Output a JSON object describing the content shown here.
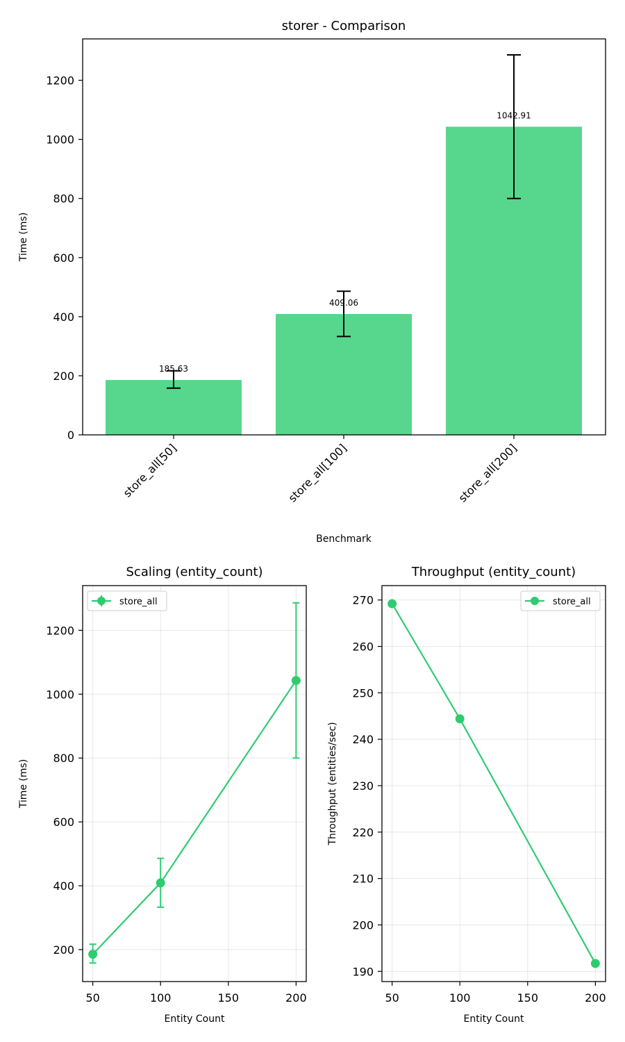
{
  "colors": {
    "bar": "#57d68d",
    "series": "#2ecc71",
    "axis": "#000000",
    "error": "#000000"
  },
  "chart_data": [
    {
      "type": "bar",
      "title": "storer - Comparison",
      "xlabel": "Benchmark",
      "ylabel": "Time (ms)",
      "categories": [
        "store_all[50]",
        "store_all[100]",
        "store_all[200]"
      ],
      "values": [
        185.63,
        409.06,
        1042.91
      ],
      "value_labels": [
        "185.63",
        "409.06",
        "1042.91"
      ],
      "error": [
        {
          "low": 158,
          "high": 217
        },
        {
          "low": 333,
          "high": 486
        },
        {
          "low": 800,
          "high": 1286
        }
      ],
      "ylim": [
        0,
        1340
      ],
      "yticks": [
        0,
        200,
        400,
        600,
        800,
        1000,
        1200
      ],
      "grid": false
    },
    {
      "type": "line",
      "title": "Scaling (entity_count)",
      "xlabel": "Entity Count",
      "ylabel": "Time (ms)",
      "x": [
        50,
        100,
        200
      ],
      "series": [
        {
          "name": "store_all",
          "values": [
            185.63,
            409.06,
            1042.91
          ],
          "error": [
            {
              "low": 158,
              "high": 217
            },
            {
              "low": 333,
              "high": 486
            },
            {
              "low": 800,
              "high": 1286
            }
          ]
        }
      ],
      "xlim": [
        42.5,
        207.5
      ],
      "ylim": [
        100,
        1340
      ],
      "xticks": [
        50,
        100,
        150,
        200
      ],
      "yticks": [
        200,
        400,
        600,
        800,
        1000,
        1200
      ],
      "legend": "top-left",
      "grid": true
    },
    {
      "type": "line",
      "title": "Throughput (entity_count)",
      "xlabel": "Entity Count",
      "ylabel": "Throughput (entities/sec)",
      "x": [
        50,
        100,
        200
      ],
      "series": [
        {
          "name": "store_all",
          "values": [
            269.2,
            244.4,
            191.7
          ]
        }
      ],
      "xlim": [
        42.5,
        207.5
      ],
      "ylim": [
        187.8,
        273.1
      ],
      "xticks": [
        50,
        100,
        150,
        200
      ],
      "yticks": [
        190,
        200,
        210,
        220,
        230,
        240,
        250,
        260,
        270
      ],
      "legend": "top-right",
      "grid": true
    }
  ]
}
